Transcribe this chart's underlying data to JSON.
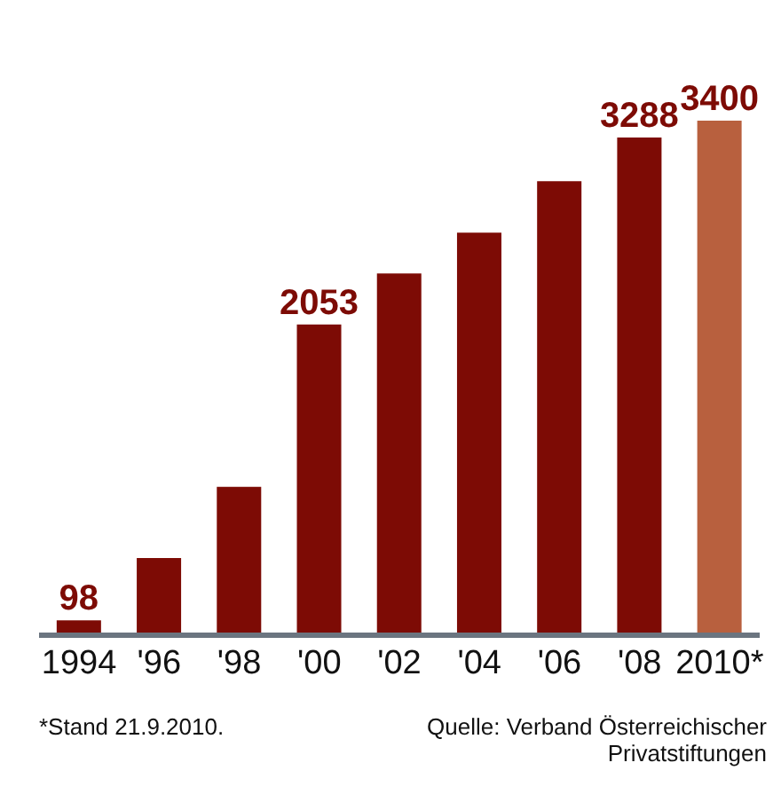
{
  "chart_data": {
    "type": "bar",
    "categories": [
      "1994",
      "'96",
      "'98",
      "'00",
      "'02",
      "'04",
      "'06",
      "'08",
      "2010*"
    ],
    "values": [
      98,
      510,
      980,
      2053,
      2390,
      2660,
      3000,
      3288,
      3400
    ],
    "colors": [
      "#7d0b05",
      "#7d0b05",
      "#7d0b05",
      "#7d0b05",
      "#7d0b05",
      "#7d0b05",
      "#7d0b05",
      "#7d0b05",
      "#b8603e"
    ],
    "value_labels": [
      "98",
      null,
      null,
      "2053",
      null,
      null,
      null,
      "3288",
      "3400"
    ],
    "annotations": [
      "*Stand 21.9.2010.",
      "Quelle: Verband Österreichischer Privatstiftungen"
    ]
  }
}
